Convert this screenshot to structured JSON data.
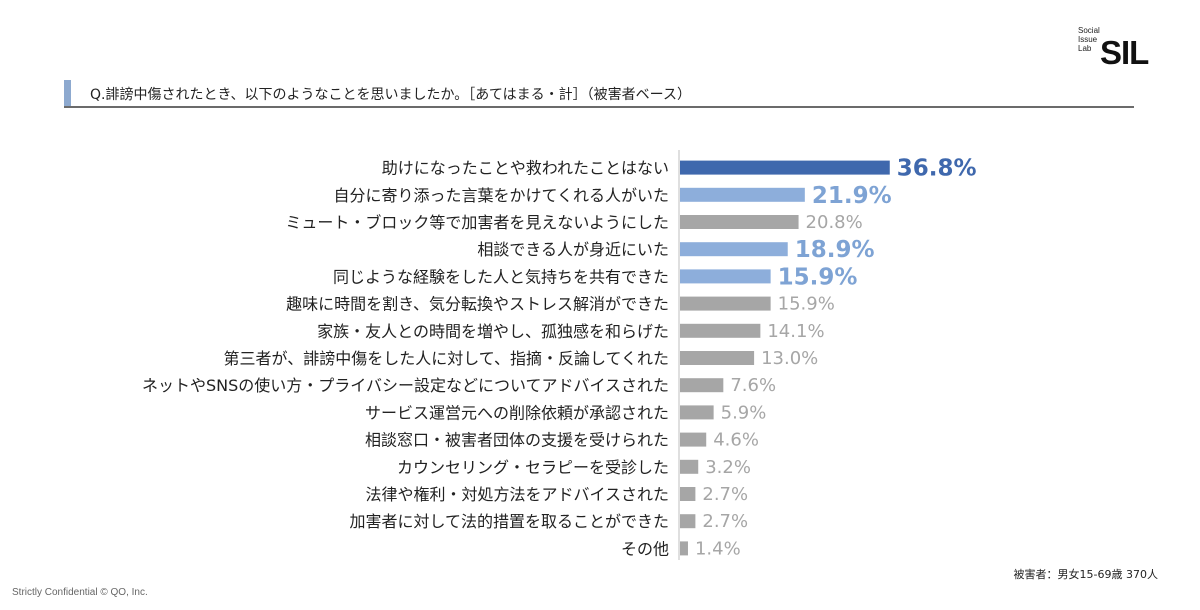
{
  "logo": {
    "line1": "Social",
    "line2": "Issue",
    "line3": "Lab",
    "mark": "SIL"
  },
  "question": "Q.誹謗中傷されたとき、以下のようなことを思いましたか。［あてはまる・計］（被害者ベース）",
  "footer_left": "Strictly Confidential  © QO, Inc.",
  "footer_right": "被害者：男女15-69歳 370人",
  "colors": {
    "highlight": "#3f68ad",
    "accent": "#8daedb",
    "neutral": "#a6a6a6"
  },
  "chart_data": {
    "type": "bar",
    "orientation": "horizontal",
    "categories": [
      "助けになったことや救われたことはない",
      "自分に寄り添った言葉をかけてくれる人がいた",
      "ミュート・ブロック等で加害者を見えないようにした",
      "相談できる人が身近にいた",
      "同じような経験をした人と気持ちを共有できた",
      "趣味に時間を割き、気分転換やストレス解消ができた",
      "家族・友人との時間を増やし、孤独感を和らげた",
      "第三者が、誹謗中傷をした人に対して、指摘・反論してくれた",
      "ネットやSNSの使い方・プライバシー設定などについてアドバイスされた",
      "サービス運営元への削除依頼が承認された",
      "相談窓口・被害者団体の支援を受けられた",
      "カウンセリング・セラピーを受診した",
      "法律や権利・対処方法をアドバイスされた",
      "加害者に対して法的措置を取ることができた",
      "その他"
    ],
    "values": [
      36.8,
      21.9,
      20.8,
      18.9,
      15.9,
      15.9,
      14.1,
      13.0,
      7.6,
      5.9,
      4.6,
      3.2,
      2.7,
      2.7,
      1.4
    ],
    "labels": [
      "36.8%",
      "21.9%",
      "20.8%",
      "18.9%",
      "15.9%",
      "15.9%",
      "14.1%",
      "13.0%",
      "7.6%",
      "5.9%",
      "4.6%",
      "3.2%",
      "2.7%",
      "2.7%",
      "1.4%"
    ],
    "styles": [
      "highlight",
      "accent",
      "neutral",
      "accent",
      "accent",
      "neutral",
      "neutral",
      "neutral",
      "neutral",
      "neutral",
      "neutral",
      "neutral",
      "neutral",
      "neutral",
      "neutral"
    ],
    "xlim": [
      0,
      40
    ],
    "grid": false,
    "legend": "none"
  }
}
